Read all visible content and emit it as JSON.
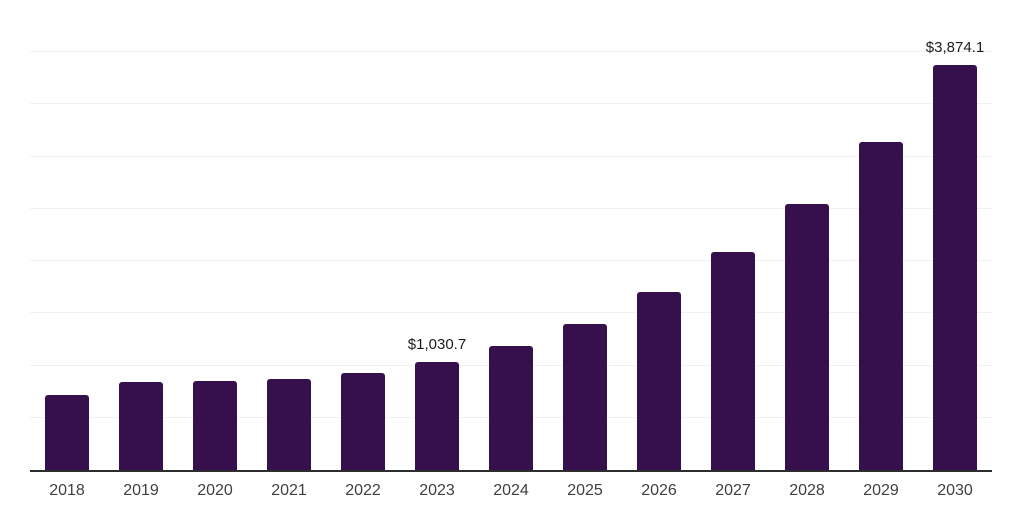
{
  "chart_data": {
    "type": "bar",
    "title": "",
    "xlabel": "",
    "ylabel": "",
    "categories": [
      "2018",
      "2019",
      "2020",
      "2021",
      "2022",
      "2023",
      "2024",
      "2025",
      "2026",
      "2027",
      "2028",
      "2029",
      "2030"
    ],
    "values": [
      720,
      845,
      852,
      871,
      930,
      1030.7,
      1190,
      1400,
      1705,
      2085,
      2545,
      3140,
      3874.1
    ],
    "data_labels": [
      "",
      "",
      "",
      "",
      "",
      "$1,030.7",
      "",
      "",
      "",
      "",
      "",
      "",
      "$3,874.1"
    ],
    "ylim": [
      0,
      4500
    ],
    "gridline_interval": 500,
    "grid": true,
    "legend": false,
    "y_axis_labels_visible": false
  },
  "style": {
    "bar_color": "#36104d",
    "gridline_color": "#f1f1f1",
    "axis_line_color": "#2d2d2d",
    "tick_label_color": "#3f3f3f",
    "data_label_color": "#1c1c1c",
    "background_color": "#ffffff"
  }
}
